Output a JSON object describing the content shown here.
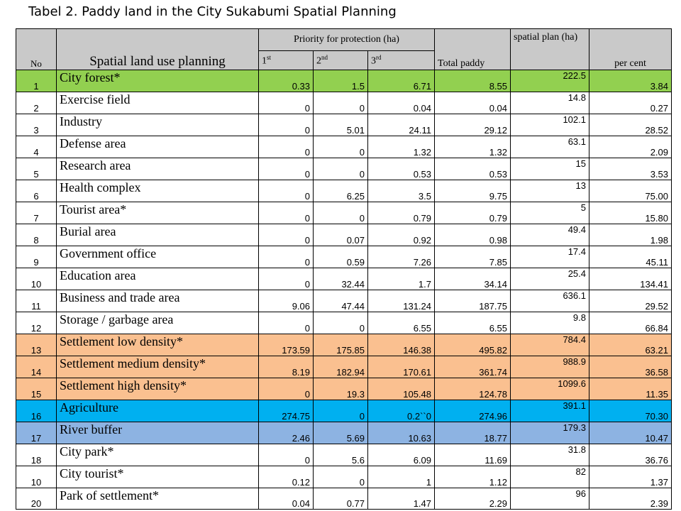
{
  "caption": "Tabel 2.  Paddy land in the City Sukabumi Spatial Planning",
  "headers": {
    "no": "No",
    "land_use": "Spatial land use planning",
    "priority": "Priority for protection (ha)",
    "first_base": "1",
    "first_sup": "st",
    "second_base": "2",
    "second_sup": "nd",
    "third_base": "3",
    "third_sup": "rd",
    "total": "Total paddy",
    "spatial_plan": "spatial plan (ha)",
    "percent": "per cent"
  },
  "row_colors": {
    "green": "#92d050",
    "peach": "#fac090",
    "cyan": "#00b0f0",
    "blue": "#8db3e2",
    "header": "#c9c9c9"
  },
  "rows": [
    {
      "no": "1",
      "name": "City forest*",
      "p1": "0.33",
      "p2": "1.5",
      "p3": "6.71",
      "total": "8.55",
      "plan": "222.5",
      "pct": "3.84",
      "color": "green"
    },
    {
      "no": "2",
      "name": "Exercise field",
      "p1": "0",
      "p2": "0",
      "p3": "0.04",
      "total": "0.04",
      "plan": "14.8",
      "pct": "0.27",
      "color": ""
    },
    {
      "no": "3",
      "name": "Industry",
      "p1": "0",
      "p2": "5.01",
      "p3": "24.11",
      "total": "29.12",
      "plan": "102.1",
      "pct": "28.52",
      "color": ""
    },
    {
      "no": "4",
      "name": "Defense area",
      "p1": "0",
      "p2": "0",
      "p3": "1.32",
      "total": "1.32",
      "plan": "63.1",
      "pct": "2.09",
      "color": ""
    },
    {
      "no": "5",
      "name": "Research area",
      "p1": "0",
      "p2": "0",
      "p3": "0.53",
      "total": "0.53",
      "plan": "15",
      "pct": "3.53",
      "color": ""
    },
    {
      "no": "6",
      "name": "Health complex",
      "p1": "0",
      "p2": "6.25",
      "p3": "3.5",
      "total": "9.75",
      "plan": "13",
      "pct": "75.00",
      "color": ""
    },
    {
      "no": "7",
      "name": "Tourist area*",
      "p1": "0",
      "p2": "0",
      "p3": "0.79",
      "total": "0.79",
      "plan": "5",
      "pct": "15.80",
      "color": ""
    },
    {
      "no": "8",
      "name": "Burial area",
      "p1": "0",
      "p2": "0.07",
      "p3": "0.92",
      "total": "0.98",
      "plan": "49.4",
      "pct": "1.98",
      "color": ""
    },
    {
      "no": "9",
      "name": "Government office",
      "p1": "0",
      "p2": "0.59",
      "p3": "7.26",
      "total": "7.85",
      "plan": "17.4",
      "pct": "45.11",
      "color": ""
    },
    {
      "no": "10",
      "name": "Education area",
      "p1": "0",
      "p2": "32.44",
      "p3": "1.7",
      "total": "34.14",
      "plan": "25.4",
      "pct": "134.41",
      "color": ""
    },
    {
      "no": "11",
      "name": "Business and trade area",
      "p1": "9.06",
      "p2": "47.44",
      "p3": "131.24",
      "total": "187.75",
      "plan": "636.1",
      "pct": "29.52",
      "color": ""
    },
    {
      "no": "12",
      "name": "Storage / garbage area",
      "p1": "0",
      "p2": "0",
      "p3": "6.55",
      "total": "6.55",
      "plan": "9.8",
      "pct": "66.84",
      "color": ""
    },
    {
      "no": "13",
      "name": "Settlement low density*",
      "p1": "173.59",
      "p2": "175.85",
      "p3": "146.38",
      "total": "495.82",
      "plan": "784.4",
      "pct": "63.21",
      "color": "peach"
    },
    {
      "no": "14",
      "name": "Settlement medium density*",
      "p1": "8.19",
      "p2": "182.94",
      "p3": "170.61",
      "total": "361.74",
      "plan": "988.9",
      "pct": "36.58",
      "color": "peach"
    },
    {
      "no": "15",
      "name": "Settlement high density*",
      "p1": "0",
      "p2": "19.3",
      "p3": "105.48",
      "total": "124.78",
      "plan": "1099.6",
      "pct": "11.35",
      "color": "peach"
    },
    {
      "no": "16",
      "name": "Agriculture",
      "p1": "274.75",
      "p2": "0",
      "p3": "0.2``0",
      "total": "274.96",
      "plan": "391.1",
      "pct": "70.30",
      "color": "cyan"
    },
    {
      "no": "17",
      "name": "River buffer",
      "p1": "2.46",
      "p2": "5.69",
      "p3": "10.63",
      "total": "18.77",
      "plan": "179.3",
      "pct": "10.47",
      "color": "blue"
    },
    {
      "no": "18",
      "name": "City park*",
      "p1": "0",
      "p2": "5.6",
      "p3": "6.09",
      "total": "11.69",
      "plan": "31.8",
      "pct": "36.76",
      "color": ""
    },
    {
      "no": "10",
      "name": "City tourist*",
      "p1": "0.12",
      "p2": "0",
      "p3": "1",
      "total": "1.12",
      "plan": "82",
      "pct": "1.37",
      "color": ""
    },
    {
      "no": "20",
      "name": "Park of settlement*",
      "p1": "0.04",
      "p2": "0.77",
      "p3": "1.47",
      "total": "2.29",
      "plan": "96",
      "pct": "2.39",
      "color": ""
    }
  ]
}
